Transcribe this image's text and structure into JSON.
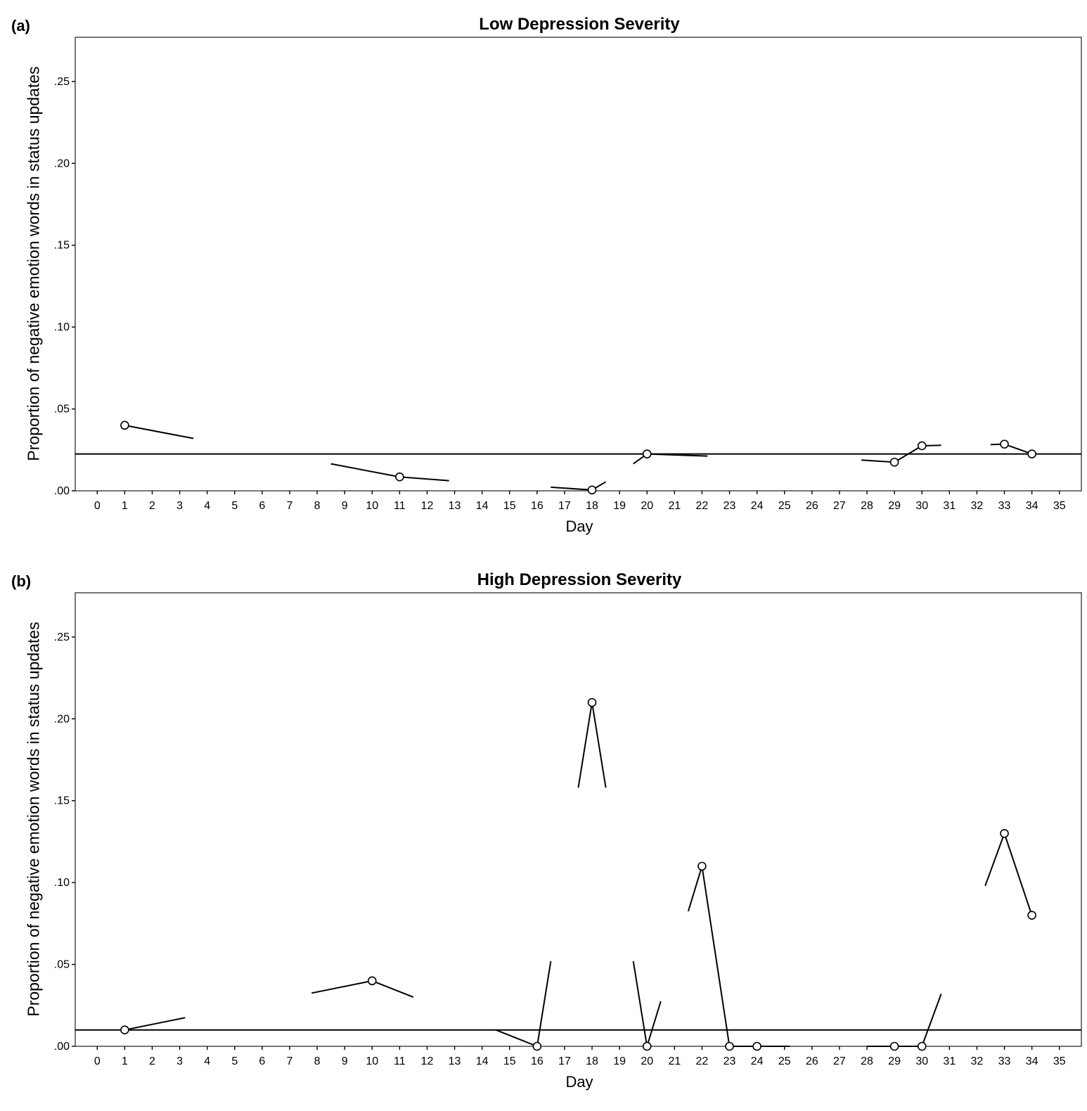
{
  "chart_data": [
    {
      "panel_label": "(a)",
      "type": "line",
      "title": "Low Depression Severity",
      "xlabel": "Day",
      "ylabel": "Proportion of negative emotion words in status updates",
      "x_ticks": [
        "0",
        "1",
        "2",
        "3",
        "4",
        "5",
        "6",
        "7",
        "8",
        "9",
        "10",
        "11",
        "12",
        "13",
        "14",
        "15",
        "16",
        "17",
        "18",
        "19",
        "20",
        "21",
        "22",
        "23",
        "24",
        "25",
        "26",
        "27",
        "28",
        "29",
        "30",
        "31",
        "32",
        "33",
        "34",
        "35"
      ],
      "y_ticks": [
        ".00",
        ".05",
        ".10",
        ".15",
        ".20",
        ".25"
      ],
      "xlim": [
        -0.8,
        35.8
      ],
      "ylim": [
        0,
        0.277
      ],
      "reference_line": 0.0225,
      "points": [
        {
          "x": 1,
          "y": 0.04
        },
        {
          "x": 11,
          "y": 0.0085
        },
        {
          "x": 18,
          "y": 0.0005
        },
        {
          "x": 20,
          "y": 0.0225
        },
        {
          "x": 29,
          "y": 0.0175
        },
        {
          "x": 30,
          "y": 0.0275
        },
        {
          "x": 33,
          "y": 0.0285
        },
        {
          "x": 34,
          "y": 0.0225
        }
      ],
      "segments": [
        [
          [
            1,
            0.04
          ],
          [
            3.5,
            0.032
          ]
        ],
        [
          [
            8.5,
            0.0165
          ],
          [
            11,
            0.0085
          ],
          [
            12.8,
            0.0062
          ]
        ],
        [
          [
            16.5,
            0.0022
          ],
          [
            18,
            0.0005
          ],
          [
            18.5,
            0.0055
          ]
        ],
        [
          [
            19.5,
            0.0165
          ],
          [
            20,
            0.0225
          ],
          [
            22.2,
            0.0212
          ]
        ],
        [
          [
            27.8,
            0.0188
          ],
          [
            29,
            0.0175
          ],
          [
            30,
            0.0275
          ],
          [
            30.7,
            0.0278
          ]
        ],
        [
          [
            32.5,
            0.0282
          ],
          [
            33,
            0.0285
          ],
          [
            34,
            0.0225
          ]
        ]
      ]
    },
    {
      "panel_label": "(b)",
      "type": "line",
      "title": "High Depression Severity",
      "xlabel": "Day",
      "ylabel": "Proportion of negative emotion words in status updates",
      "x_ticks": [
        "0",
        "1",
        "2",
        "3",
        "4",
        "5",
        "6",
        "7",
        "8",
        "9",
        "10",
        "11",
        "12",
        "13",
        "14",
        "15",
        "16",
        "17",
        "18",
        "19",
        "20",
        "21",
        "22",
        "23",
        "24",
        "25",
        "26",
        "27",
        "28",
        "29",
        "30",
        "31",
        "32",
        "33",
        "34",
        "35"
      ],
      "y_ticks": [
        ".00",
        ".05",
        ".10",
        ".15",
        ".20",
        ".25"
      ],
      "xlim": [
        -0.8,
        35.8
      ],
      "ylim": [
        0,
        0.277
      ],
      "reference_line": 0.01,
      "points": [
        {
          "x": 1,
          "y": 0.01
        },
        {
          "x": 10,
          "y": 0.04
        },
        {
          "x": 16,
          "y": 0.0
        },
        {
          "x": 18,
          "y": 0.21
        },
        {
          "x": 20,
          "y": 0.0
        },
        {
          "x": 22,
          "y": 0.11
        },
        {
          "x": 23,
          "y": 0.0
        },
        {
          "x": 24,
          "y": 0.0
        },
        {
          "x": 29,
          "y": 0.0
        },
        {
          "x": 30,
          "y": 0.0
        },
        {
          "x": 33,
          "y": 0.13
        },
        {
          "x": 34,
          "y": 0.08
        }
      ],
      "segments": [
        [
          [
            1,
            0.01
          ],
          [
            3.2,
            0.0175
          ]
        ],
        [
          [
            7.8,
            0.0325
          ],
          [
            10,
            0.04
          ],
          [
            11.5,
            0.03
          ]
        ],
        [
          [
            14.5,
            0.01
          ],
          [
            16,
            0.0
          ],
          [
            16.5,
            0.052
          ]
        ],
        [
          [
            17.5,
            0.158
          ],
          [
            18,
            0.21
          ],
          [
            18.5,
            0.158
          ]
        ],
        [
          [
            19.5,
            0.052
          ],
          [
            20,
            0.0
          ],
          [
            20.5,
            0.0275
          ]
        ],
        [
          [
            21.5,
            0.0825
          ],
          [
            22,
            0.11
          ],
          [
            23,
            0.0
          ],
          [
            24,
            0.0
          ],
          [
            25.2,
            0.0
          ]
        ],
        [
          [
            28,
            0.0
          ],
          [
            29,
            0.0
          ],
          [
            30,
            0.0
          ],
          [
            30.7,
            0.032
          ]
        ],
        [
          [
            32.3,
            0.098
          ],
          [
            33,
            0.13
          ],
          [
            34,
            0.08
          ]
        ]
      ]
    }
  ]
}
